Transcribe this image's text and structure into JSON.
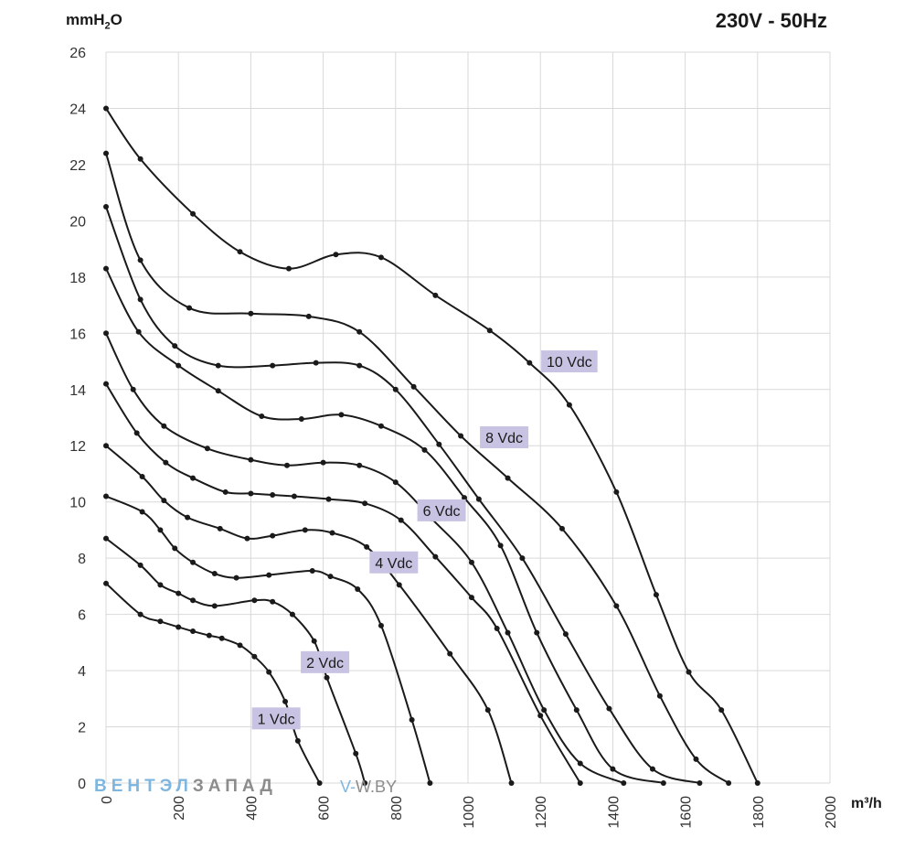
{
  "header": {
    "title": "230V - 50Hz"
  },
  "y_unit": {
    "main": "mmH",
    "sub": "2",
    "tail": "O"
  },
  "x_unit": "m³/h",
  "watermark": {
    "part_a": "ВЕНТЭЛ",
    "part_b": "ЗАПАД",
    "site_prefix": "V-",
    "site_rest": "W.BY"
  },
  "chart_data": {
    "type": "line",
    "title": "230V - 50Hz",
    "xlabel": "m³/h",
    "ylabel": "mmH2O",
    "xlim": [
      0,
      2000
    ],
    "ylim": [
      0,
      26
    ],
    "xticks": [
      "0",
      "200",
      "400",
      "600",
      "800",
      "1000",
      "1200",
      "1400",
      "1600",
      "1800",
      "2000"
    ],
    "yticks": [
      "0",
      "2",
      "4",
      "6",
      "8",
      "10",
      "12",
      "14",
      "16",
      "18",
      "20",
      "22",
      "24",
      "26"
    ],
    "grid": true,
    "colors": {
      "curve": "#1a1a1a",
      "grid": "#d9d9d9",
      "label_bg": "#c9c3e3"
    },
    "series": [
      {
        "name": "",
        "x": [
          0,
          95,
          150,
          200,
          240,
          285,
          320,
          370,
          410,
          450,
          495,
          530,
          590
        ],
        "y": [
          7.1,
          6.0,
          5.75,
          5.55,
          5.4,
          5.25,
          5.15,
          4.9,
          4.5,
          3.95,
          2.9,
          1.5,
          0
        ]
      },
      {
        "name": "",
        "x": [
          0,
          95,
          150,
          200,
          240,
          300,
          410,
          460,
          515,
          575,
          610,
          690,
          715
        ],
        "y": [
          8.7,
          7.75,
          7.05,
          6.75,
          6.5,
          6.3,
          6.5,
          6.45,
          6.0,
          5.05,
          3.75,
          1.05,
          0
        ]
      },
      {
        "name": "",
        "x": [
          0,
          100,
          150,
          190,
          240,
          300,
          360,
          450,
          570,
          620,
          695,
          760,
          845,
          895
        ],
        "y": [
          10.2,
          9.65,
          9.0,
          8.35,
          7.85,
          7.45,
          7.3,
          7.4,
          7.55,
          7.35,
          6.9,
          5.6,
          2.25,
          0
        ]
      },
      {
        "name": "",
        "x": [
          0,
          100,
          160,
          225,
          315,
          390,
          460,
          550,
          625,
          720,
          810,
          950,
          1055,
          1120
        ],
        "y": [
          12.0,
          10.9,
          10.05,
          9.45,
          9.05,
          8.7,
          8.8,
          9.0,
          8.9,
          8.4,
          7.05,
          4.6,
          2.6,
          0
        ]
      },
      {
        "name": "",
        "x": [
          0,
          85,
          165,
          240,
          330,
          400,
          460,
          520,
          615,
          715,
          815,
          910,
          1010,
          1080,
          1200,
          1310
        ],
        "y": [
          14.2,
          12.45,
          11.4,
          10.85,
          10.35,
          10.3,
          10.25,
          10.2,
          10.1,
          9.95,
          9.35,
          8.05,
          6.6,
          5.5,
          2.4,
          0
        ]
      },
      {
        "name": "",
        "x": [
          0,
          75,
          160,
          280,
          400,
          500,
          600,
          700,
          800,
          900,
          1010,
          1110,
          1210,
          1310,
          1430
        ],
        "y": [
          16.0,
          14.0,
          12.7,
          11.9,
          11.5,
          11.3,
          11.4,
          11.3,
          10.7,
          9.4,
          7.85,
          5.35,
          2.6,
          0.7,
          0
        ]
      },
      {
        "name": "",
        "x": [
          0,
          90,
          200,
          310,
          430,
          540,
          650,
          760,
          880,
          990,
          1090,
          1190,
          1300,
          1400,
          1540
        ],
        "y": [
          18.3,
          16.05,
          14.85,
          13.95,
          13.05,
          12.95,
          13.1,
          12.7,
          11.85,
          10.15,
          8.45,
          5.35,
          2.6,
          0.5,
          0
        ]
      },
      {
        "name": "",
        "x": [
          0,
          95,
          190,
          310,
          460,
          580,
          700,
          800,
          920,
          1030,
          1150,
          1270,
          1390,
          1510,
          1640
        ],
        "y": [
          20.5,
          17.2,
          15.55,
          14.85,
          14.85,
          14.95,
          14.85,
          14.0,
          12.05,
          10.1,
          8.0,
          5.3,
          2.65,
          0.5,
          0
        ]
      },
      {
        "name": "",
        "x": [
          0,
          95,
          230,
          400,
          560,
          700,
          850,
          980,
          1110,
          1260,
          1410,
          1530,
          1630,
          1720
        ],
        "y": [
          22.4,
          18.6,
          16.9,
          16.7,
          16.6,
          16.05,
          14.1,
          12.35,
          10.85,
          9.05,
          6.3,
          3.1,
          0.85,
          0
        ]
      },
      {
        "name": "",
        "x": [
          0,
          95,
          240,
          370,
          505,
          635,
          760,
          910,
          1060,
          1170,
          1280,
          1410,
          1520,
          1610,
          1700,
          1800
        ],
        "y": [
          24.0,
          22.2,
          20.25,
          18.9,
          18.3,
          18.8,
          18.7,
          17.35,
          16.1,
          14.95,
          13.45,
          10.35,
          6.7,
          3.95,
          2.6,
          0
        ]
      }
    ],
    "annotations": [
      {
        "text": "1 Vdc",
        "x": 470,
        "y": 2.3
      },
      {
        "text": "2 Vdc",
        "x": 605,
        "y": 4.3
      },
      {
        "text": "4 Vdc",
        "x": 795,
        "y": 7.85
      },
      {
        "text": "6 Vdc",
        "x": 927,
        "y": 9.7
      },
      {
        "text": "8 Vdc",
        "x": 1100,
        "y": 12.3
      },
      {
        "text": "10 Vdc",
        "x": 1280,
        "y": 15.0
      }
    ]
  }
}
